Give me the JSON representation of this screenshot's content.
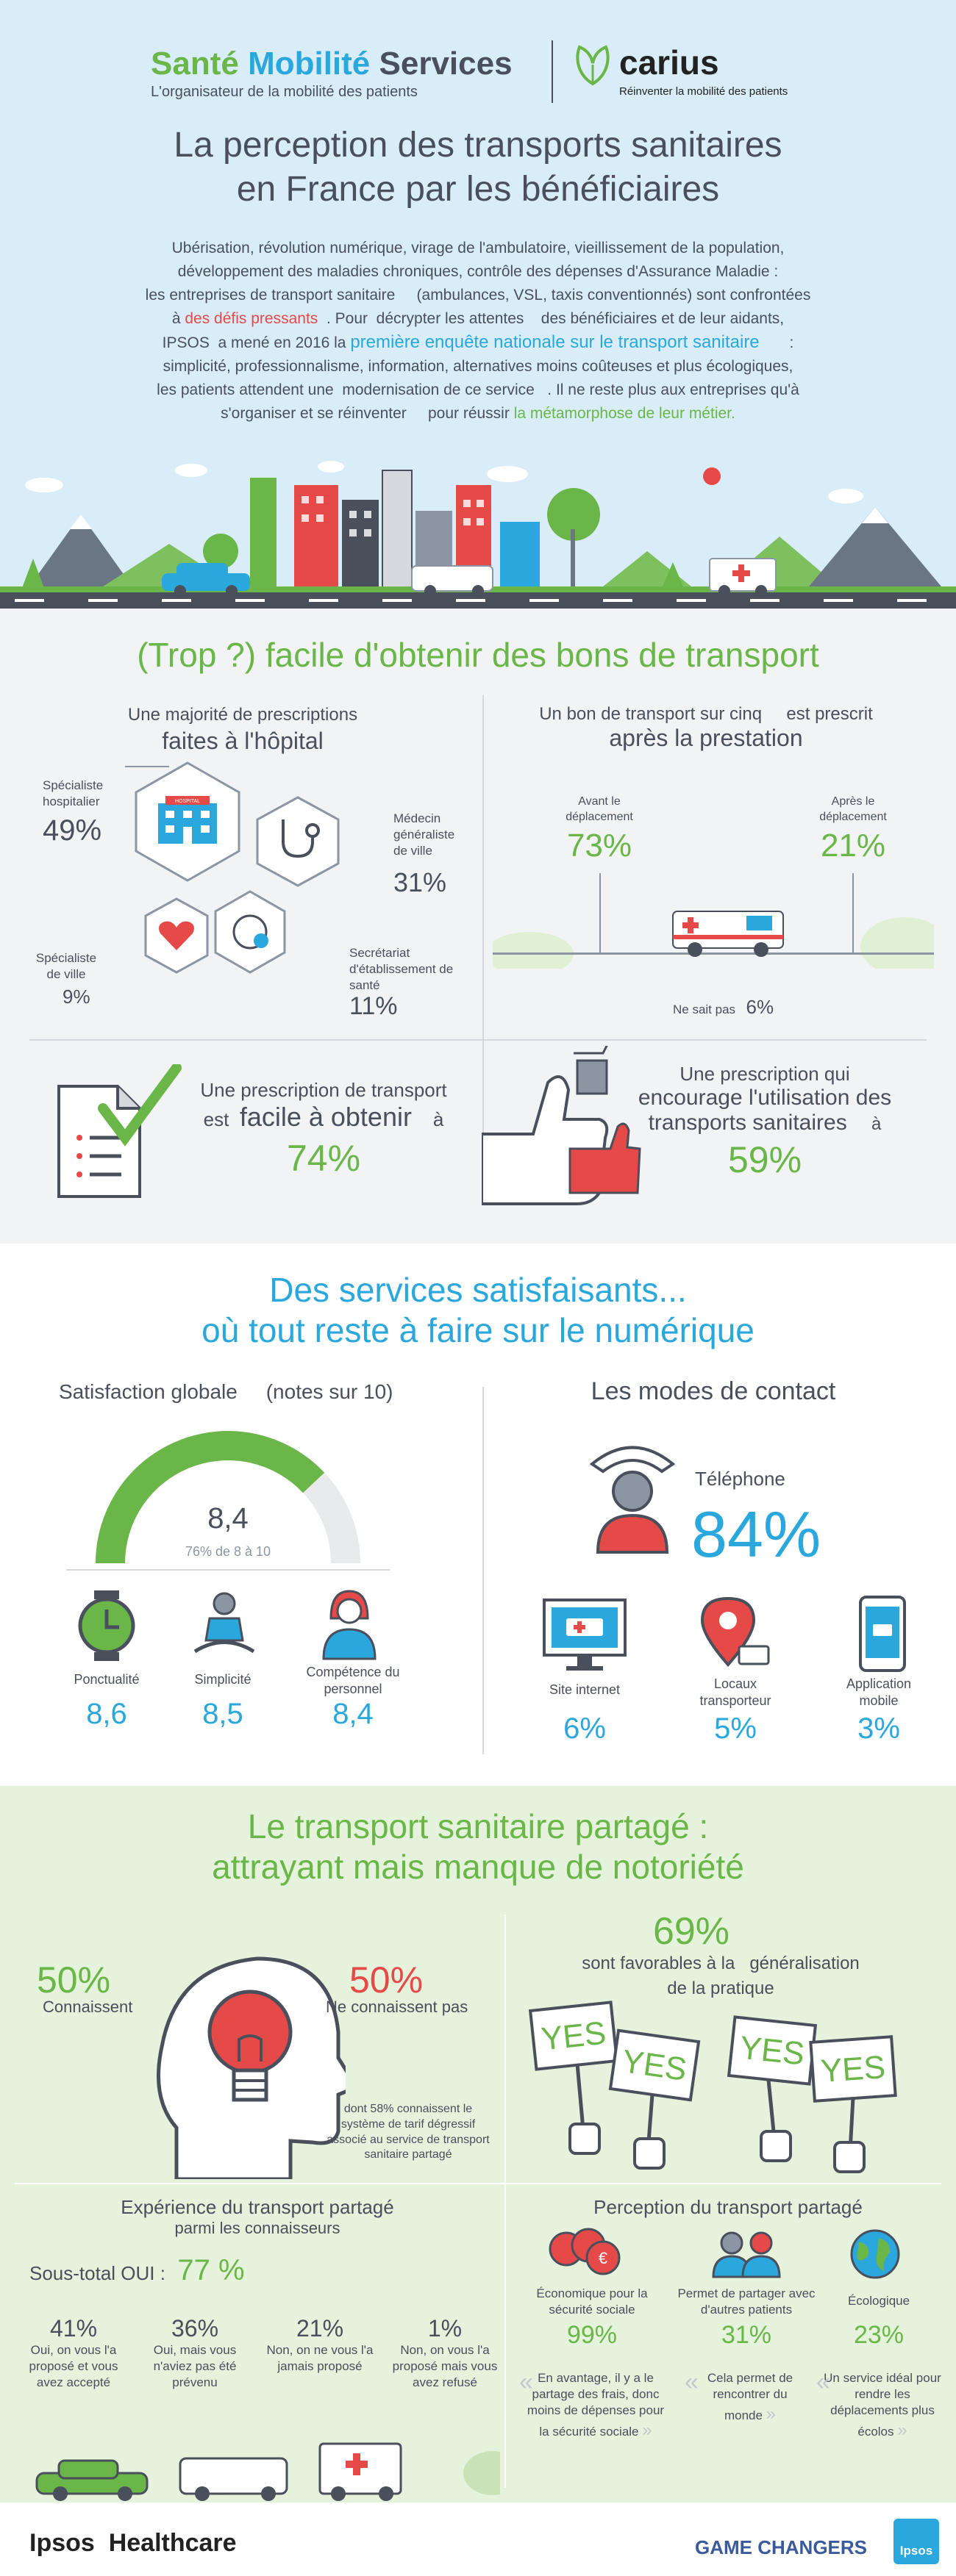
{
  "header": {
    "brand_part1": "Santé",
    "brand_part2": "Mobilité",
    "brand_part3": "Services",
    "brand_tagline": "L'organisateur de la mobilité des patients",
    "partner_name": "carius",
    "partner_tagline": "Réinventer la mobilité des patients",
    "title_line1": "La perception des transports sanitaires",
    "title_line2": "en France par les bénéficiaires",
    "intro": [
      "Ubérisation, révolution numérique, virage de l'ambulatoire, vieillissement de la population,",
      "développement des maladies chroniques, contrôle des dépenses d'Assurance Maladie :",
      "les entreprises de transport sanitaire     (ambulances, VSL, taxis conventionnés) sont confrontées",
      "IPSOS  a mené en 2016 la",
      "simplicité, professionnalisme, information, alternatives moins coûteuses et plus écologiques,",
      "les patients attendent une  modernisation de ce service   . Il ne reste plus aux entreprises qu'à",
      "s'organiser et se réinventer     pour réussir"
    ],
    "intro_line4_pre": "à",
    "intro_line4_red": "des défis pressants",
    "intro_line4_post": ". Pour  décrypter les attentes    des bénéficiaires et de leur aidants,",
    "intro_line5_blue": "première enquête nationale sur le transport sanitaire",
    "intro_line5_post": ":",
    "intro_last_green": "la métamorphose de leur métier."
  },
  "colors": {
    "green": "#6ab648",
    "blue": "#2aa7dc",
    "red": "#e64a48",
    "dark": "#4a4f5c",
    "sky": "#d8edf8",
    "mint": "#e5f2dc"
  },
  "section1": {
    "title": "(Trop ?) facile d'obtenir des bons de transport",
    "left_title_line1": "Une majorité de prescriptions",
    "left_title_line2": "faites à l'hôpital",
    "hosp_label": "Spécialiste hospitalier",
    "hosp_value": "49%",
    "gp_label": "Médecin généraliste de ville",
    "gp_value": "31%",
    "spec_label": "Spécialiste de ville",
    "spec_value": "9%",
    "sec_label": "Secrétariat d'établissement de santé",
    "sec_value": "11%",
    "hospital_sign": "HOSPITAL",
    "right_title_line1": "Un bon de transport sur cinq     est prescrit",
    "right_title_line2": "après la prestation",
    "before_label": "Avant le déplacement",
    "before_value": "73%",
    "after_label": "Après le déplacement",
    "after_value": "21%",
    "dontknow_label": "Ne sait pas",
    "dontknow_value": "6%",
    "easy_line1": "Une prescription de transport",
    "easy_line2_pre": "est",
    "easy_line2_em": "facile à obtenir",
    "easy_line2_post": "à",
    "easy_value": "74%",
    "encourage_line1": "Une prescription qui",
    "encourage_line2": "encourage l'utilisation des",
    "encourage_line3": "transports sanitaires",
    "encourage_line3_post": "à",
    "encourage_value": "59%"
  },
  "section2": {
    "title_line1": "Des services satisfaisants...",
    "title_line2": "où tout reste à faire sur le numérique",
    "sat_title": "Satisfaction globale     (notes sur 10)",
    "sat_score": "8,4",
    "sat_share": "76% de 8 à 10",
    "sat_fraction": 0.76,
    "items": [
      {
        "label": "Ponctualité",
        "value": "8,6"
      },
      {
        "label": "Simplicité",
        "value": "8,5"
      },
      {
        "label": "Compétence du personnel",
        "value": "8,4"
      }
    ],
    "contact_title": "Les modes de contact",
    "phone_label": "Téléphone",
    "phone_value": "84%",
    "contacts": [
      {
        "label": "Site internet",
        "value": "6%"
      },
      {
        "label": "Locaux transporteur",
        "value": "5%"
      },
      {
        "label": "Application mobile",
        "value": "3%"
      }
    ]
  },
  "section3": {
    "title_line1": "Le transport sanitaire partagé :",
    "title_line2": "attrayant mais manque de notoriété",
    "know_value": "50%",
    "know_label": "Connaissent",
    "dontknow_value": "50%",
    "dontknow_label": "Ne connaissent pas",
    "note": "dont 58%  connaissent le système de tarif dégressif associé au service de transport sanitaire partagé",
    "fav_value": "69%",
    "fav_line1": "sont favorables à la   généralisation",
    "fav_line2": "de la pratique",
    "yes": "YES",
    "exp_title_line1": "Expérience du transport partagé",
    "exp_title_line2": "parmi les connaisseurs",
    "subtotal_label": "Sous-total OUI :",
    "subtotal_value": "77 %",
    "exp": [
      {
        "value": "41%",
        "label": "Oui, on vous l'a proposé et vous avez accepté"
      },
      {
        "value": "36%",
        "label": "Oui, mais vous n'aviez pas été prévenu"
      },
      {
        "value": "21%",
        "label": "Non, on ne vous l'a jamais proposé"
      },
      {
        "value": "1%",
        "label": "Non, on vous l'a proposé mais vous avez refusé"
      }
    ],
    "perc_title": "Perception du transport partagé",
    "perc": [
      {
        "label": "Économique pour la sécurité sociale",
        "value": "99%",
        "quote": "En avantage, il y a le partage des frais, donc moins de dépenses pour la sécurité sociale"
      },
      {
        "label": "Permet de partager avec d'autres patients",
        "value": "31%",
        "quote": "Cela permet de rencontrer du monde"
      },
      {
        "label": "Écologique",
        "value": "23%",
        "quote": "Un service idéal pour rendre les déplacements plus écolos"
      }
    ]
  },
  "footer": {
    "left": "Ipsos  Healthcare",
    "right": "GAME CHANGERS",
    "logo": "Ipsos"
  }
}
